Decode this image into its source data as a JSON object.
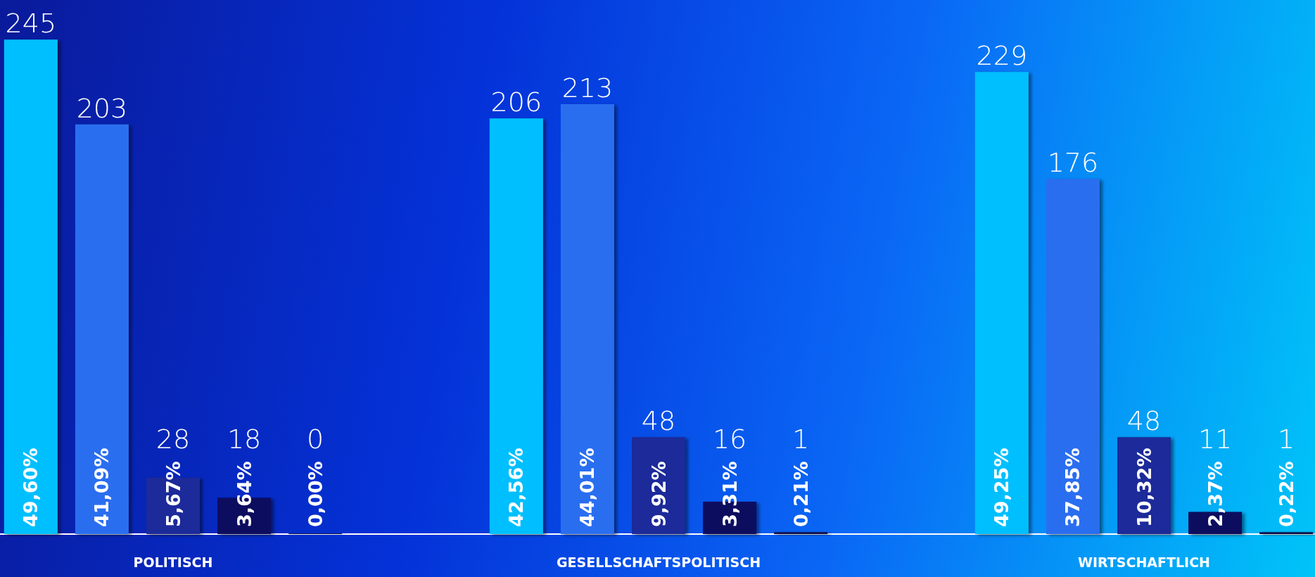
{
  "chart_data": {
    "type": "bar",
    "categories": [
      "POLITISCH",
      "GESELLSCHAFTSPOLITISCH",
      "WIRTSCHAFTLICH"
    ],
    "series": [
      {
        "color": "#00bfff",
        "values": [
          245,
          206,
          229
        ]
      },
      {
        "color": "#2a6ef0",
        "values": [
          203,
          213,
          176
        ]
      },
      {
        "color": "#1a2a9a",
        "values": [
          28,
          48,
          48
        ]
      },
      {
        "color": "#080a5e",
        "values": [
          18,
          16,
          11
        ]
      },
      {
        "color": "#0a0a4a",
        "values": [
          0,
          1,
          1
        ]
      }
    ],
    "annotations": [
      "49,60%",
      "42,56%",
      "49,25%",
      "41,09%",
      "44,01%",
      "37,85%",
      "5,67%",
      "9,92%",
      "10,32%",
      "3,64%",
      "3,31%",
      "2,37%",
      "0,00%",
      "0,21%",
      "0,22%"
    ],
    "data_labels": true,
    "grid": false,
    "legend": false
  }
}
